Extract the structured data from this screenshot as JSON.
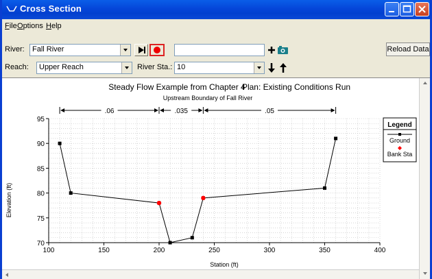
{
  "window": {
    "title": "Cross Section"
  },
  "menu": {
    "file": "ile",
    "file_key": "F",
    "options": "ptions",
    "options_key": "O",
    "help": "elp",
    "help_key": "H"
  },
  "toolbar": {
    "river_label": "River:",
    "river_value": "Fall River",
    "reach_label": "Reach:",
    "reach_value": "Upper Reach",
    "station_label": "River Sta.:",
    "station_value": "10",
    "reload_label": "Reload Data"
  },
  "chart_data": {
    "type": "line",
    "title": "Steady Flow Example from Chapter 4",
    "plan": "Plan: Existing Conditions Run",
    "subtitle": "Upstream Boundary of Fall River",
    "xlabel": "Station (ft)",
    "ylabel": "Elevation (ft)",
    "xlim": [
      100,
      400
    ],
    "ylim": [
      70,
      95
    ],
    "xticks": [
      100,
      150,
      200,
      250,
      300,
      350,
      400
    ],
    "yticks": [
      70,
      75,
      80,
      85,
      90,
      95
    ],
    "grid": true,
    "legend_position": "right",
    "legend_title": "Legend",
    "series": [
      {
        "name": "Ground",
        "color": "#000000",
        "x": [
          110,
          120,
          200,
          210,
          230,
          240,
          350,
          360
        ],
        "y": [
          90,
          80,
          78,
          70,
          71,
          79,
          81,
          91
        ]
      },
      {
        "name": "Bank Sta",
        "color": "#ff0000",
        "x": [
          200,
          240
        ],
        "y": [
          78,
          79
        ]
      }
    ],
    "manning_n": [
      {
        "label": ".06",
        "from": 110,
        "to": 200
      },
      {
        "label": ".035",
        "from": 200,
        "to": 240
      },
      {
        "label": ".05",
        "from": 240,
        "to": 360
      }
    ]
  }
}
